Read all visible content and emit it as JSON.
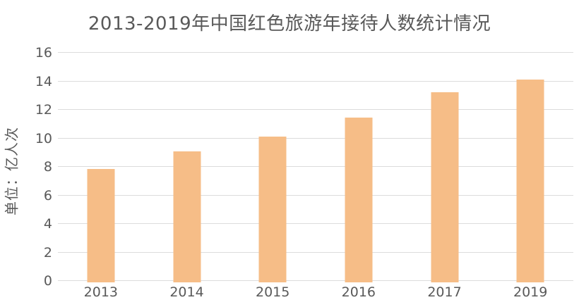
{
  "chart_data": {
    "type": "bar",
    "title": "2013-2019年中国红色旅游年接待人数统计情况",
    "ylabel": "单位：亿人次",
    "xlabel": "",
    "categories": [
      "2013",
      "2014",
      "2015",
      "2016",
      "2017",
      "2019"
    ],
    "values": [
      7.86,
      9.07,
      10.1,
      11.47,
      13.24,
      14.1
    ],
    "ylim": [
      0,
      16
    ],
    "yticks": [
      0,
      2,
      4,
      6,
      8,
      10,
      12,
      14,
      16
    ],
    "grid": true,
    "legend": false,
    "colors": {
      "bar": "#F6BD87",
      "gridline": "#DCDCDC",
      "text": "#595959",
      "background": "#FFFFFF"
    }
  }
}
